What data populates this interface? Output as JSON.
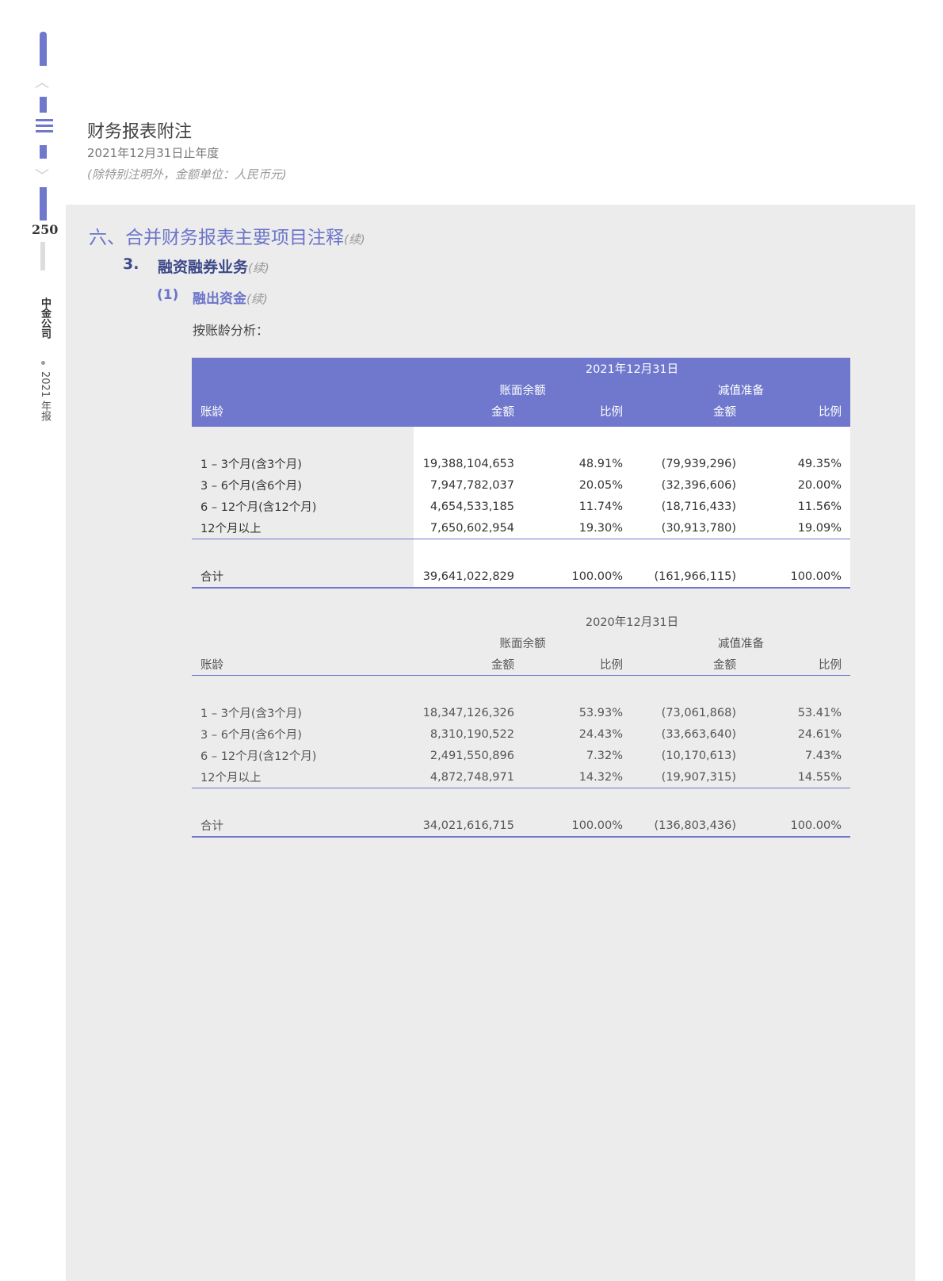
{
  "sidebar": {
    "page_number": "250",
    "company": "中金公司",
    "year_report": "2021 年报",
    "colors": {
      "accent": "#6f78cc"
    },
    "icons": [
      "chevron-up-icon",
      "list-menu-icon",
      "chevron-down-icon"
    ]
  },
  "header": {
    "title": "财务报表附注",
    "period": "2021年12月31日止年度",
    "note": "(除特别注明外，金额单位：人民币元)"
  },
  "section": {
    "title": "六、合并财务报表主要项目注释",
    "cont": "(续)",
    "sub": {
      "num": "3.",
      "title": "融资融券业务",
      "cont": "(续)"
    },
    "subsub": {
      "num": "(1)",
      "title": "融出资金",
      "cont": "(续)"
    },
    "intro": "按账龄分析："
  },
  "tables": [
    {
      "date": "2021年12月31日",
      "group1": "账面余额",
      "group2": "减值准备",
      "col0": "账龄",
      "col1": "金额",
      "col2": "比例",
      "col3": "金额",
      "col4": "比例",
      "rows": [
        [
          "1 – 3个月(含3个月)",
          "19,388,104,653",
          "48.91%",
          "(79,939,296)",
          "49.35%"
        ],
        [
          "3 – 6个月(含6个月)",
          "7,947,782,037",
          "20.05%",
          "(32,396,606)",
          "20.00%"
        ],
        [
          "6 – 12个月(含12个月)",
          "4,654,533,185",
          "11.74%",
          "(18,716,433)",
          "11.56%"
        ],
        [
          "12个月以上",
          "7,650,602,954",
          "19.30%",
          "(30,913,780)",
          "19.09%"
        ]
      ],
      "total": [
        "合计",
        "39,641,022,829",
        "100.00%",
        "(161,966,115)",
        "100.00%"
      ]
    },
    {
      "date": "2020年12月31日",
      "group1": "账面余额",
      "group2": "减值准备",
      "col0": "账龄",
      "col1": "金额",
      "col2": "比例",
      "col3": "金额",
      "col4": "比例",
      "rows": [
        [
          "1 – 3个月(含3个月)",
          "18,347,126,326",
          "53.93%",
          "(73,061,868)",
          "53.41%"
        ],
        [
          "3 – 6个月(含6个月)",
          "8,310,190,522",
          "24.43%",
          "(33,663,640)",
          "24.61%"
        ],
        [
          "6 – 12个月(含12个月)",
          "2,491,550,896",
          "7.32%",
          "(10,170,613)",
          "7.43%"
        ],
        [
          "12个月以上",
          "4,872,748,971",
          "14.32%",
          "(19,907,315)",
          "14.55%"
        ]
      ],
      "total": [
        "合计",
        "34,021,616,715",
        "100.00%",
        "(136,803,436)",
        "100.00%"
      ]
    }
  ]
}
